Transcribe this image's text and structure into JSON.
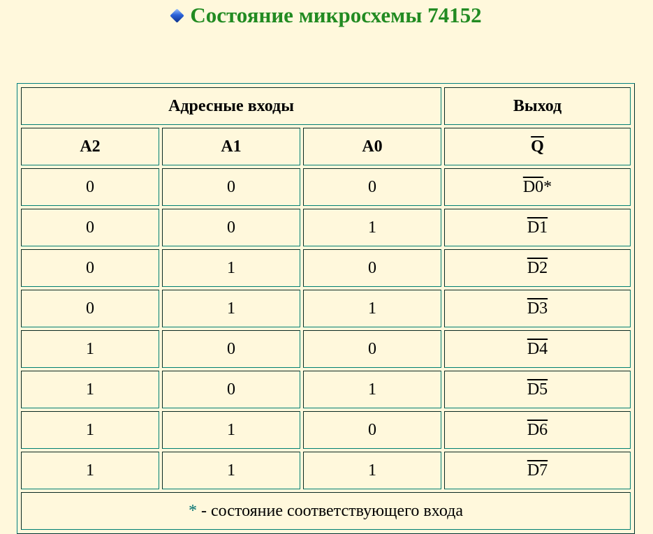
{
  "title": "Состояние микросхемы 74152",
  "title_icon": "blue-diamond-icon",
  "colors": {
    "title": "#228b22",
    "background": "#fff8dc",
    "border": "#008080"
  },
  "table": {
    "group_headers": [
      "Адресные входы",
      "Выход"
    ],
    "columns": [
      "A2",
      "A1",
      "A0",
      "Q"
    ],
    "rows": [
      [
        "0",
        "0",
        "0",
        "D0"
      ],
      [
        "0",
        "0",
        "1",
        "D1"
      ],
      [
        "0",
        "1",
        "0",
        "D2"
      ],
      [
        "0",
        "1",
        "1",
        "D3"
      ],
      [
        "1",
        "0",
        "0",
        "D4"
      ],
      [
        "1",
        "0",
        "1",
        "D5"
      ],
      [
        "1",
        "1",
        "0",
        "D6"
      ],
      [
        "1",
        "1",
        "1",
        "D7"
      ]
    ],
    "first_row_mark": "*",
    "footnote_mark": "*",
    "footnote": " - состояние соответствующего входа"
  }
}
